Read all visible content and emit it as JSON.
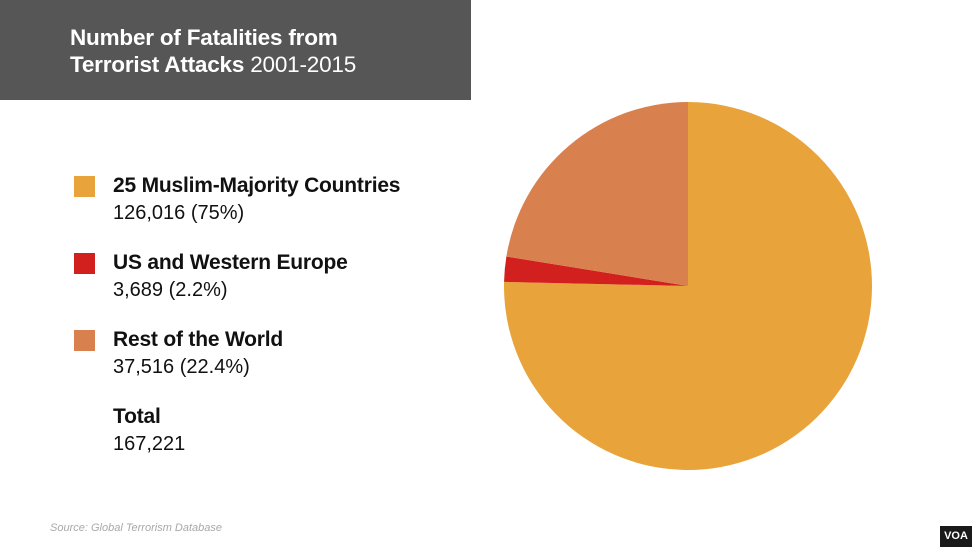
{
  "title": {
    "line1": "Number of Fatalities from",
    "line2_bold": "Terrorist Attacks",
    "line2_light": "2001-2015"
  },
  "legend": [
    {
      "label": "25 Muslim-Majority Countries",
      "value_text": "126,016 (75%)",
      "color": "#E8A33A"
    },
    {
      "label": "US and Western Europe",
      "value_text": "3,689 (2.2%)",
      "color": "#D2201E"
    },
    {
      "label": "Rest of the World",
      "value_text": "37,516 (22.4%)",
      "color": "#D9814E"
    }
  ],
  "total": {
    "label": "Total",
    "value_text": "167,221"
  },
  "source": "Source: Global Terrorism Database",
  "logo": "VOA",
  "chart_data": {
    "type": "pie",
    "title": "Number of Fatalities from Terrorist Attacks 2001-2015",
    "slices": [
      {
        "label": "25 Muslim-Majority Countries",
        "value": 126016,
        "percent": 75,
        "color": "#E8A33A"
      },
      {
        "label": "US and Western Europe",
        "value": 3689,
        "percent": 2.2,
        "color": "#D2201E"
      },
      {
        "label": "Rest of the World",
        "value": 37516,
        "percent": 22.4,
        "color": "#D9814E"
      }
    ],
    "total": 167221,
    "start": "top",
    "direction": "clockwise"
  }
}
